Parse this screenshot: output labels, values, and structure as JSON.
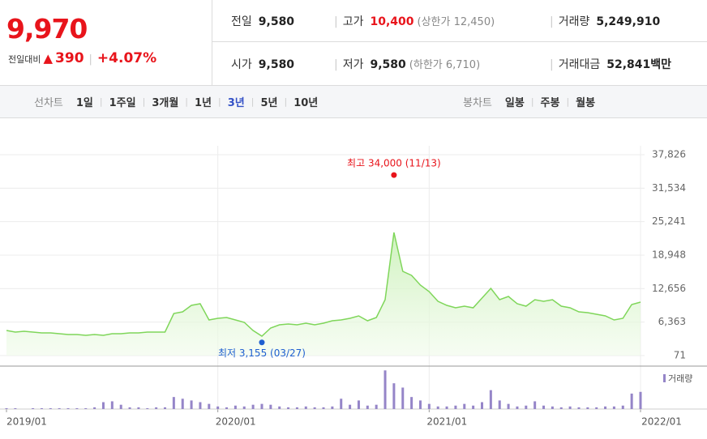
{
  "quote": {
    "price": "9,970",
    "change_label": "전일대비",
    "arrow": "▲",
    "change": "390",
    "change_pct": "+4.07%"
  },
  "stats": [
    [
      {
        "label": "전일",
        "value": "9,580"
      },
      {
        "label": "고가",
        "value": "10,400",
        "note": "(상한가 12,450)"
      },
      {
        "label": "거래량",
        "value": "5,249,910"
      }
    ],
    [
      {
        "label": "시가",
        "value": "9,580"
      },
      {
        "label": "저가",
        "value": "9,580",
        "note": "(하한가 6,710)"
      },
      {
        "label": "거래대금",
        "value": "52,841",
        "unit": "백만"
      }
    ]
  ],
  "tabs": {
    "line_label": "선차트",
    "line_options": [
      "1일",
      "1주일",
      "3개월",
      "1년",
      "3년",
      "5년",
      "10년"
    ],
    "selected": 4,
    "candle_label": "봉차트",
    "candle_options": [
      "일봉",
      "주봉",
      "월봉"
    ]
  },
  "chart_data": {
    "type": "line",
    "categories": [
      "2019/01",
      null,
      null,
      null,
      null,
      null,
      null,
      null,
      null,
      null,
      null,
      null,
      null,
      null,
      null,
      null,
      null,
      null,
      null,
      null,
      null,
      null,
      null,
      null,
      "2020/01",
      null,
      null,
      null,
      null,
      null,
      null,
      null,
      null,
      null,
      null,
      null,
      null,
      null,
      null,
      null,
      null,
      null,
      null,
      null,
      null,
      null,
      null,
      null,
      "2021/01",
      null,
      null,
      null,
      null,
      null,
      null,
      null,
      null,
      null,
      null,
      null,
      null,
      null,
      null,
      null,
      null,
      null,
      null,
      null,
      null,
      null,
      null,
      null,
      "2022/01"
    ],
    "values": [
      4790,
      4490,
      4640,
      4490,
      4330,
      4330,
      4180,
      4030,
      4030,
      3880,
      4030,
      3880,
      4180,
      4180,
      4330,
      4330,
      4490,
      4490,
      4490,
      7990,
      8290,
      9510,
      9810,
      6770,
      7070,
      7230,
      6770,
      6310,
      4790,
      3730,
      5250,
      5860,
      6010,
      5860,
      6160,
      5860,
      6160,
      6620,
      6770,
      7070,
      7530,
      6620,
      7230,
      10580,
      23210,
      15900,
      15140,
      13320,
      12100,
      10270,
      9510,
      9050,
      9360,
      9050,
      10880,
      12710,
      10580,
      11180,
      9810,
      9360,
      10580,
      10270,
      10580,
      9360,
      9050,
      8290,
      8140,
      7840,
      7530,
      6770,
      7070,
      9660,
      10120
    ],
    "color": "#7fd65a",
    "volume": {
      "name": "거래량",
      "color": "#9585c8",
      "values": [
        1,
        1,
        0,
        1,
        1,
        1,
        1,
        1,
        1,
        1,
        2,
        8,
        9,
        5,
        2,
        2,
        1,
        2,
        2,
        14,
        12,
        10,
        8,
        6,
        3,
        2,
        4,
        3,
        5,
        6,
        5,
        3,
        2,
        2,
        3,
        2,
        2,
        3,
        12,
        5,
        10,
        4,
        5,
        45,
        30,
        25,
        14,
        10,
        6,
        3,
        3,
        4,
        6,
        4,
        8,
        22,
        10,
        6,
        3,
        4,
        9,
        4,
        3,
        2,
        3,
        2,
        2,
        2,
        3,
        3,
        4,
        18,
        20
      ]
    },
    "y2lim": [
      0,
      50
    ],
    "ylim": [
      71,
      37826
    ],
    "yticks": [
      71,
      {
        "value": 6363,
        "label": "6,363"
      },
      {
        "value": 12656,
        "label": "12,656"
      },
      {
        "value": 18948,
        "label": "18,948"
      },
      {
        "value": 25241,
        "label": "25,241"
      },
      {
        "value": 31534,
        "label": "31,534"
      },
      {
        "value": 37826,
        "label": "37,826"
      }
    ],
    "grid": true,
    "high": {
      "label": "최고 34,000 (11/13)",
      "value": 34000,
      "color": "#e8141b"
    },
    "low": {
      "label": "최저 3,155 (03/27)",
      "value": 3155,
      "color": "#1f5fd0"
    }
  }
}
